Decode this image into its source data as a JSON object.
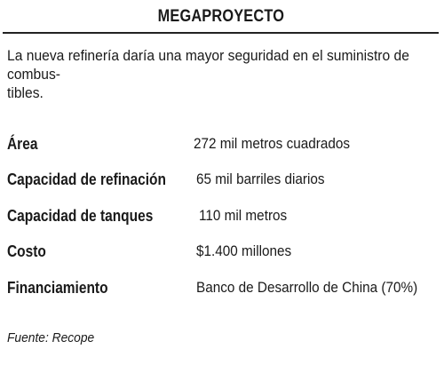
{
  "title": "MEGAPROYECTO",
  "intro": "La nueva refinería daría una mayor seguridad en el suministro de combus-tibles.",
  "intro_line1": "La nueva refinería daría una mayor seguridad en el suministro de combus-",
  "intro_line2": "tibles.",
  "facts": [
    {
      "label": "Área",
      "value": "272 mil metros cuadrados"
    },
    {
      "label": "Capacidad de refinación",
      "value": "65 mil barriles diarios"
    },
    {
      "label": "Capacidad de tanques",
      "value": "110 mil metros"
    },
    {
      "label": "Costo",
      "value": "$1.400 millones"
    },
    {
      "label": "Financiamiento",
      "value": "Banco de Desarrollo de China (70%)"
    }
  ],
  "source": "Fuente: Recope"
}
